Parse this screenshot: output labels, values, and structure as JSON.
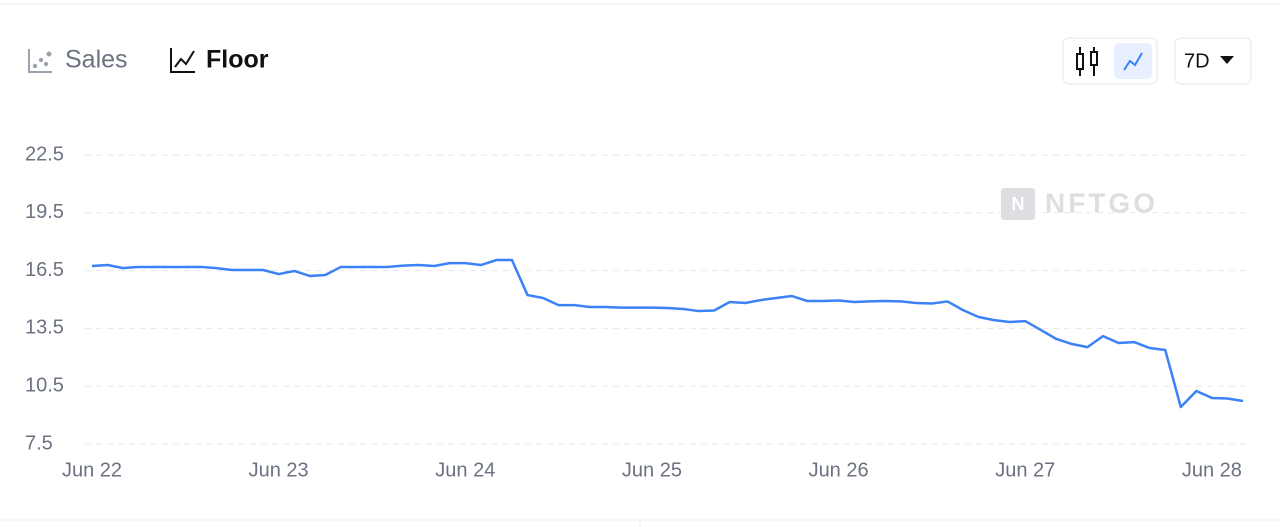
{
  "tabs": [
    "Sales",
    "Floor"
  ],
  "range": "7D",
  "watermark": "NFTGO",
  "chart_data": {
    "type": "line",
    "color": "#3b82f6",
    "grid": true,
    "x": [
      0,
      2,
      4,
      6,
      8,
      10,
      12,
      14,
      16,
      18,
      20,
      22,
      24,
      26,
      28,
      30,
      32,
      34,
      36,
      38,
      40,
      42,
      44,
      46,
      48,
      50,
      52,
      54,
      56,
      58,
      60,
      62,
      64,
      66,
      68,
      70,
      72,
      74,
      76,
      78,
      80,
      82,
      84,
      86,
      88,
      90,
      92,
      94,
      96,
      98,
      100,
      102,
      104,
      106,
      108,
      110,
      112,
      114,
      116,
      118,
      120,
      122,
      124,
      126,
      128,
      130,
      132,
      134,
      136,
      138,
      140,
      142,
      144,
      146,
      148
    ],
    "values": [
      16.74,
      16.79,
      16.63,
      16.69,
      16.69,
      16.69,
      16.69,
      16.69,
      16.63,
      16.53,
      16.53,
      16.53,
      16.32,
      16.48,
      16.22,
      16.27,
      16.69,
      16.69,
      16.69,
      16.69,
      16.76,
      16.79,
      16.74,
      16.89,
      16.89,
      16.79,
      17.05,
      17.05,
      15.23,
      15.08,
      14.71,
      14.71,
      14.61,
      14.61,
      14.58,
      14.58,
      14.58,
      14.56,
      14.51,
      14.4,
      14.43,
      14.87,
      14.82,
      14.97,
      15.08,
      15.18,
      14.92,
      14.92,
      14.95,
      14.87,
      14.9,
      14.92,
      14.9,
      14.82,
      14.79,
      14.9,
      14.45,
      14.09,
      13.93,
      13.83,
      13.88,
      13.42,
      12.95,
      12.69,
      12.53,
      13.1,
      12.74,
      12.79,
      12.48,
      12.38,
      9.42,
      10.25,
      9.89,
      9.86,
      9.73
    ],
    "xlim": [
      0,
      148
    ],
    "xticks": [
      {
        "value": 0,
        "label": "Jun 22"
      },
      {
        "value": 24,
        "label": "Jun 23"
      },
      {
        "value": 48,
        "label": "Jun 24"
      },
      {
        "value": 72,
        "label": "Jun 25"
      },
      {
        "value": 96,
        "label": "Jun 26"
      },
      {
        "value": 120,
        "label": "Jun 27"
      },
      {
        "value": 144,
        "label": "Jun 28"
      }
    ],
    "ylim": [
      7.5,
      22.5
    ],
    "yticks": [
      7.5,
      10.5,
      13.5,
      16.5,
      19.5,
      22.5
    ]
  }
}
